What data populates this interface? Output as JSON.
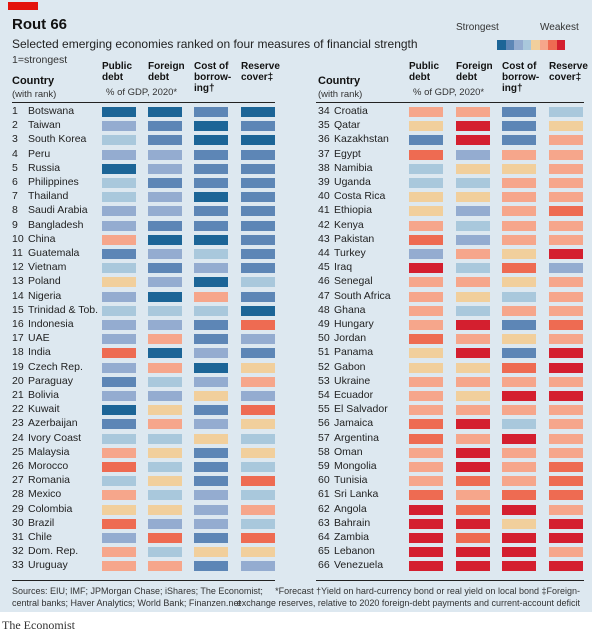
{
  "header": {
    "title": "Rout 66",
    "subtitle": "Selected emerging economies ranked on four measures of financial strength",
    "note": "1=strongest",
    "legend_strong": "Strongest",
    "legend_weak": "Weakest"
  },
  "columns": {
    "country": "Country",
    "country_sub": "(with rank)",
    "public_debt_1": "Public",
    "public_debt_2": "debt",
    "foreign_debt_1": "Foreign",
    "foreign_debt_2": "debt",
    "gdp_sub": "% of GDP, 2020*",
    "cost_1": "Cost of",
    "cost_2": "borrow-",
    "cost_3": "ing†",
    "reserve_1": "Reserve",
    "reserve_2": "cover‡"
  },
  "footer": {
    "sources_1": "Sources: EIU; IMF; JPMorgan Chase; iShares; The Economist;",
    "sources_2": "central banks; Haver Analytics; World Bank; Finanzen.net",
    "notes_1": "*Forecast   †Yield on hard-currency bond or real yield on local bond   ‡Foreign-",
    "notes_2": "exchange reserves, relative to 2020 foreign-debt payments and current-account deficit",
    "brand": "The Economist"
  },
  "chart_data": {
    "type": "heatmap",
    "title": "Rout 66",
    "subtitle": "Selected emerging economies ranked on four measures of financial strength",
    "scale_note": "Colour scale 1 (strongest, dark blue) to 8 (weakest, dark red)",
    "scale_colors": [
      "#1c6597",
      "#5d86b6",
      "#94acd0",
      "#a9c8dc",
      "#f1cf9c",
      "#f6a68b",
      "#ee6b52",
      "#d41f2f"
    ],
    "measures": [
      "Public debt",
      "Foreign debt",
      "Cost of borrowing",
      "Reserve cover"
    ],
    "rows": [
      {
        "rank": 1,
        "country": "Botswana",
        "values": [
          1,
          1,
          2,
          1
        ]
      },
      {
        "rank": 2,
        "country": "Taiwan",
        "values": [
          3,
          2,
          1,
          2
        ]
      },
      {
        "rank": 3,
        "country": "South Korea",
        "values": [
          4,
          2,
          1,
          1
        ]
      },
      {
        "rank": 4,
        "country": "Peru",
        "values": [
          3,
          3,
          2,
          2
        ]
      },
      {
        "rank": 5,
        "country": "Russia",
        "values": [
          1,
          3,
          2,
          2
        ]
      },
      {
        "rank": 6,
        "country": "Philippines",
        "values": [
          4,
          2,
          2,
          2
        ]
      },
      {
        "rank": 7,
        "country": "Thailand",
        "values": [
          4,
          3,
          1,
          2
        ]
      },
      {
        "rank": 8,
        "country": "Saudi Arabia",
        "values": [
          3,
          3,
          2,
          2
        ]
      },
      {
        "rank": 9,
        "country": "Bangladesh",
        "values": [
          3,
          2,
          2,
          2
        ]
      },
      {
        "rank": 10,
        "country": "China",
        "values": [
          6,
          1,
          1,
          2
        ]
      },
      {
        "rank": 11,
        "country": "Guatemala",
        "values": [
          2,
          3,
          4,
          2
        ]
      },
      {
        "rank": 12,
        "country": "Vietnam",
        "values": [
          4,
          2,
          3,
          2
        ]
      },
      {
        "rank": 13,
        "country": "Poland",
        "values": [
          5,
          3,
          1,
          4
        ]
      },
      {
        "rank": 14,
        "country": "Nigeria",
        "values": [
          3,
          1,
          6,
          2
        ]
      },
      {
        "rank": 15,
        "country": "Trinidad & Tob.",
        "values": [
          4,
          4,
          4,
          1
        ]
      },
      {
        "rank": 16,
        "country": "Indonesia",
        "values": [
          3,
          3,
          2,
          7
        ]
      },
      {
        "rank": 17,
        "country": "UAE",
        "values": [
          3,
          6,
          2,
          3
        ]
      },
      {
        "rank": 18,
        "country": "India",
        "values": [
          7,
          1,
          3,
          2
        ]
      },
      {
        "rank": 19,
        "country": "Czech Rep.",
        "values": [
          3,
          6,
          1,
          5
        ]
      },
      {
        "rank": 20,
        "country": "Paraguay",
        "values": [
          2,
          4,
          3,
          6
        ]
      },
      {
        "rank": 21,
        "country": "Bolivia",
        "values": [
          3,
          3,
          5,
          3
        ]
      },
      {
        "rank": 22,
        "country": "Kuwait",
        "values": [
          1,
          5,
          2,
          7
        ]
      },
      {
        "rank": 23,
        "country": "Azerbaijan",
        "values": [
          2,
          6,
          3,
          5
        ]
      },
      {
        "rank": 24,
        "country": "Ivory Coast",
        "values": [
          4,
          4,
          5,
          4
        ]
      },
      {
        "rank": 25,
        "country": "Malaysia",
        "values": [
          6,
          5,
          2,
          5
        ]
      },
      {
        "rank": 26,
        "country": "Morocco",
        "values": [
          7,
          4,
          2,
          4
        ]
      },
      {
        "rank": 27,
        "country": "Romania",
        "values": [
          4,
          5,
          2,
          7
        ]
      },
      {
        "rank": 28,
        "country": "Mexico",
        "values": [
          6,
          4,
          3,
          4
        ]
      },
      {
        "rank": 29,
        "country": "Colombia",
        "values": [
          5,
          5,
          3,
          6
        ]
      },
      {
        "rank": 30,
        "country": "Brazil",
        "values": [
          7,
          3,
          3,
          4
        ]
      },
      {
        "rank": 31,
        "country": "Chile",
        "values": [
          3,
          7,
          2,
          7
        ]
      },
      {
        "rank": 32,
        "country": "Dom. Rep.",
        "values": [
          6,
          4,
          5,
          5
        ]
      },
      {
        "rank": 33,
        "country": "Uruguay",
        "values": [
          6,
          6,
          2,
          3
        ]
      },
      {
        "rank": 34,
        "country": "Croatia",
        "values": [
          6,
          6,
          2,
          4
        ]
      },
      {
        "rank": 35,
        "country": "Qatar",
        "values": [
          5,
          8,
          2,
          5
        ]
      },
      {
        "rank": 36,
        "country": "Kazakhstan",
        "values": [
          2,
          8,
          2,
          6
        ]
      },
      {
        "rank": 37,
        "country": "Egypt",
        "values": [
          7,
          3,
          6,
          6
        ]
      },
      {
        "rank": 38,
        "country": "Namibia",
        "values": [
          4,
          5,
          5,
          6
        ]
      },
      {
        "rank": 39,
        "country": "Uganda",
        "values": [
          4,
          4,
          6,
          6
        ]
      },
      {
        "rank": 40,
        "country": "Costa Rica",
        "values": [
          5,
          5,
          6,
          6
        ]
      },
      {
        "rank": 41,
        "country": "Ethiopia",
        "values": [
          5,
          3,
          6,
          7
        ]
      },
      {
        "rank": 42,
        "country": "Kenya",
        "values": [
          6,
          4,
          6,
          6
        ]
      },
      {
        "rank": 43,
        "country": "Pakistan",
        "values": [
          7,
          3,
          6,
          6
        ]
      },
      {
        "rank": 44,
        "country": "Turkey",
        "values": [
          3,
          6,
          5,
          8
        ]
      },
      {
        "rank": 45,
        "country": "Iraq",
        "values": [
          8,
          4,
          7,
          3
        ]
      },
      {
        "rank": 46,
        "country": "Senegal",
        "values": [
          6,
          6,
          5,
          6
        ]
      },
      {
        "rank": 47,
        "country": "South Africa",
        "values": [
          6,
          5,
          4,
          6
        ]
      },
      {
        "rank": 48,
        "country": "Ghana",
        "values": [
          6,
          4,
          6,
          6
        ]
      },
      {
        "rank": 49,
        "country": "Hungary",
        "values": [
          6,
          8,
          2,
          7
        ]
      },
      {
        "rank": 50,
        "country": "Jordan",
        "values": [
          7,
          6,
          5,
          6
        ]
      },
      {
        "rank": 51,
        "country": "Panama",
        "values": [
          5,
          8,
          2,
          8
        ]
      },
      {
        "rank": 52,
        "country": "Gabon",
        "values": [
          5,
          5,
          7,
          8
        ]
      },
      {
        "rank": 53,
        "country": "Ukraine",
        "values": [
          6,
          6,
          6,
          6
        ]
      },
      {
        "rank": 54,
        "country": "Ecuador",
        "values": [
          6,
          5,
          8,
          8
        ]
      },
      {
        "rank": 55,
        "country": "El Salvador",
        "values": [
          6,
          6,
          6,
          6
        ]
      },
      {
        "rank": 56,
        "country": "Jamaica",
        "values": [
          7,
          8,
          4,
          6
        ]
      },
      {
        "rank": 57,
        "country": "Argentina",
        "values": [
          7,
          6,
          8,
          6
        ]
      },
      {
        "rank": 58,
        "country": "Oman",
        "values": [
          6,
          8,
          6,
          6
        ]
      },
      {
        "rank": 59,
        "country": "Mongolia",
        "values": [
          6,
          8,
          6,
          7
        ]
      },
      {
        "rank": 60,
        "country": "Tunisia",
        "values": [
          6,
          7,
          6,
          7
        ]
      },
      {
        "rank": 61,
        "country": "Sri Lanka",
        "values": [
          7,
          6,
          7,
          7
        ]
      },
      {
        "rank": 62,
        "country": "Angola",
        "values": [
          8,
          7,
          8,
          6
        ]
      },
      {
        "rank": 63,
        "country": "Bahrain",
        "values": [
          8,
          8,
          5,
          8
        ]
      },
      {
        "rank": 64,
        "country": "Zambia",
        "values": [
          8,
          7,
          8,
          8
        ]
      },
      {
        "rank": 65,
        "country": "Lebanon",
        "values": [
          8,
          8,
          8,
          6
        ]
      },
      {
        "rank": 66,
        "country": "Venezuela",
        "values": [
          8,
          8,
          8,
          8
        ]
      }
    ]
  }
}
